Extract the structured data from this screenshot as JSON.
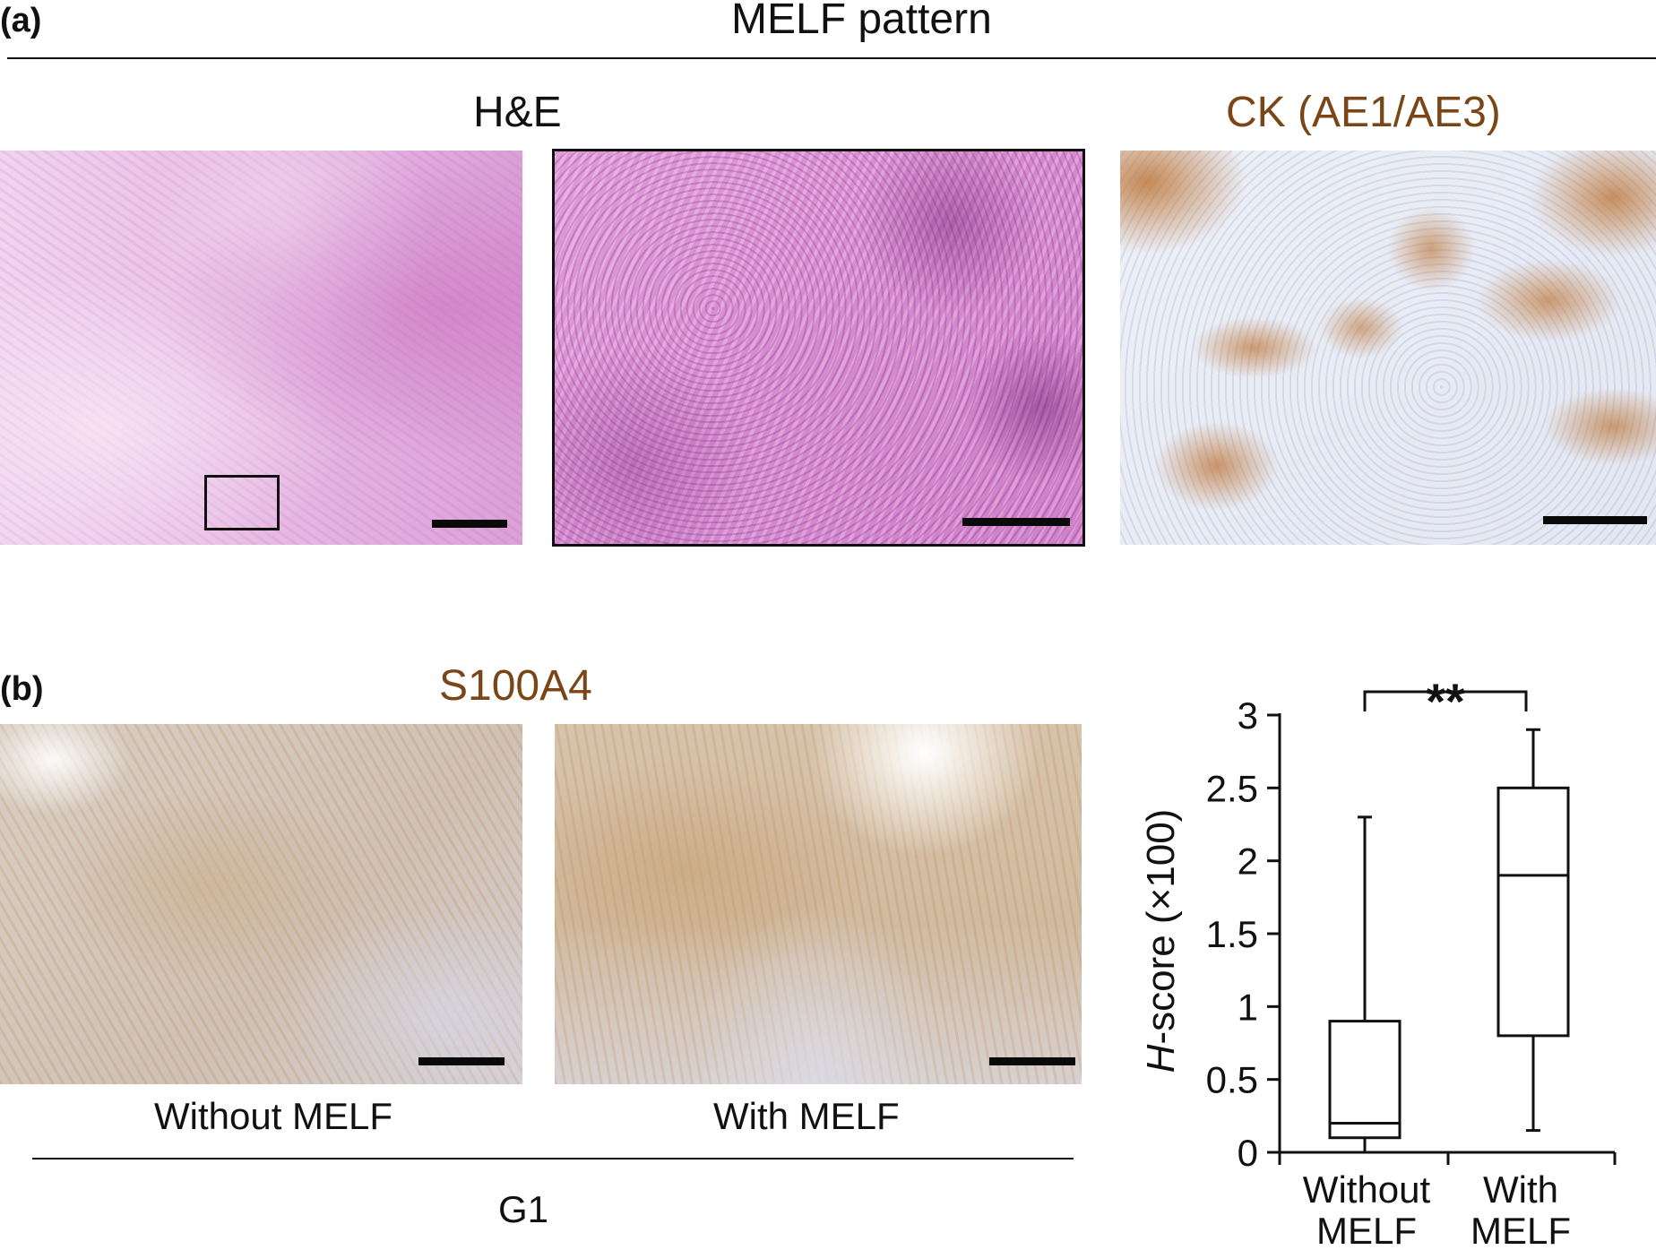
{
  "panel_a": {
    "label": "(a)",
    "title": "MELF pattern",
    "he_title": "H&E",
    "ck_title": "CK (AE1/AE3)"
  },
  "panel_b": {
    "label": "(b)",
    "s100_title": "S100A4",
    "caption_without": "Without MELF",
    "caption_with": "With MELF",
    "group_label": "G1"
  },
  "colors": {
    "stain_label": "#7a4517"
  },
  "chart_data": {
    "type": "box",
    "ylabel_italic": "H",
    "ylabel_rest": "-score (×100)",
    "ylim": [
      0,
      3
    ],
    "yticks": [
      "0",
      "0.5",
      "1",
      "1.5",
      "2",
      "2.5",
      "3"
    ],
    "significance": "**",
    "categories": [
      {
        "line1": "Without",
        "line2": "MELF"
      },
      {
        "line1": "With",
        "line2": "MELF"
      }
    ],
    "boxes": [
      {
        "min": 0.0,
        "q1": 0.1,
        "median": 0.2,
        "q3": 0.9,
        "max": 2.3
      },
      {
        "min": 0.15,
        "q1": 0.8,
        "median": 1.9,
        "q3": 2.5,
        "max": 2.9
      }
    ]
  }
}
